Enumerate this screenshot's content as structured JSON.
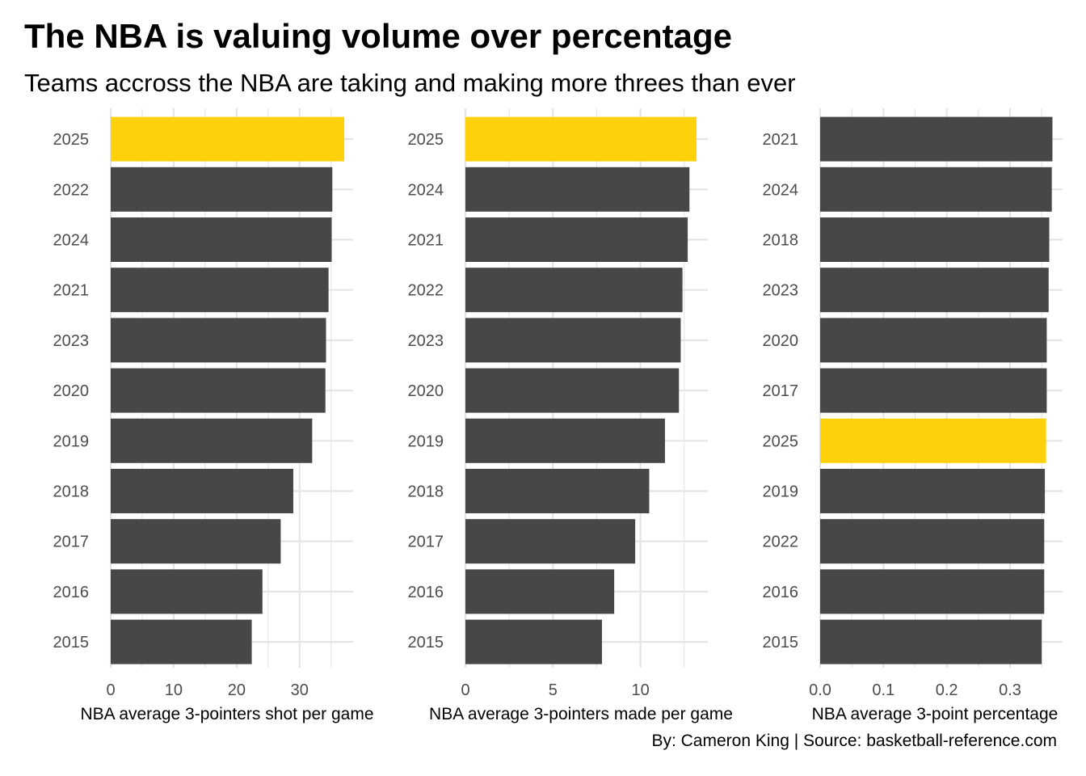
{
  "title": "The NBA is valuing volume over percentage",
  "subtitle": "Teams accross the NBA are taking and making more threes than ever",
  "caption": "By: Cameron King  |  Source: basketball-reference.com",
  "colors": {
    "highlight": "#FFD10A",
    "bar": "#474747",
    "grid": "#e5e5e5",
    "tick_text": "#4d4d4d"
  },
  "chart_data": [
    {
      "type": "bar",
      "orientation": "horizontal",
      "xlabel": "NBA average 3-pointers shot per game",
      "xticks": [
        0,
        10,
        20,
        30
      ],
      "xlim": [
        0,
        38.5
      ],
      "highlight": "2025",
      "categories": [
        "2025",
        "2022",
        "2024",
        "2021",
        "2023",
        "2020",
        "2019",
        "2018",
        "2017",
        "2016",
        "2015"
      ],
      "values": [
        37.1,
        35.2,
        35.1,
        34.6,
        34.2,
        34.1,
        32.0,
        29.0,
        27.0,
        24.1,
        22.4
      ]
    },
    {
      "type": "bar",
      "orientation": "horizontal",
      "xlabel": "NBA average 3-pointers made per game",
      "xticks": [
        0,
        5,
        10
      ],
      "xlim": [
        0,
        13.85
      ],
      "highlight": "2025",
      "categories": [
        "2025",
        "2024",
        "2021",
        "2022",
        "2023",
        "2020",
        "2019",
        "2018",
        "2017",
        "2016",
        "2015"
      ],
      "values": [
        13.2,
        12.8,
        12.7,
        12.4,
        12.3,
        12.2,
        11.4,
        10.5,
        9.7,
        8.5,
        7.8
      ]
    },
    {
      "type": "bar",
      "orientation": "horizontal",
      "xlabel": "NBA average 3-point percentage",
      "xticks": [
        "0.0",
        "0.1",
        "0.2",
        "0.3"
      ],
      "xlim": [
        0,
        0.383
      ],
      "highlight": "2025",
      "categories": [
        "2021",
        "2024",
        "2018",
        "2023",
        "2020",
        "2017",
        "2025",
        "2019",
        "2022",
        "2016",
        "2015"
      ],
      "values": [
        0.367,
        0.366,
        0.362,
        0.361,
        0.358,
        0.358,
        0.357,
        0.355,
        0.354,
        0.354,
        0.35
      ]
    }
  ]
}
